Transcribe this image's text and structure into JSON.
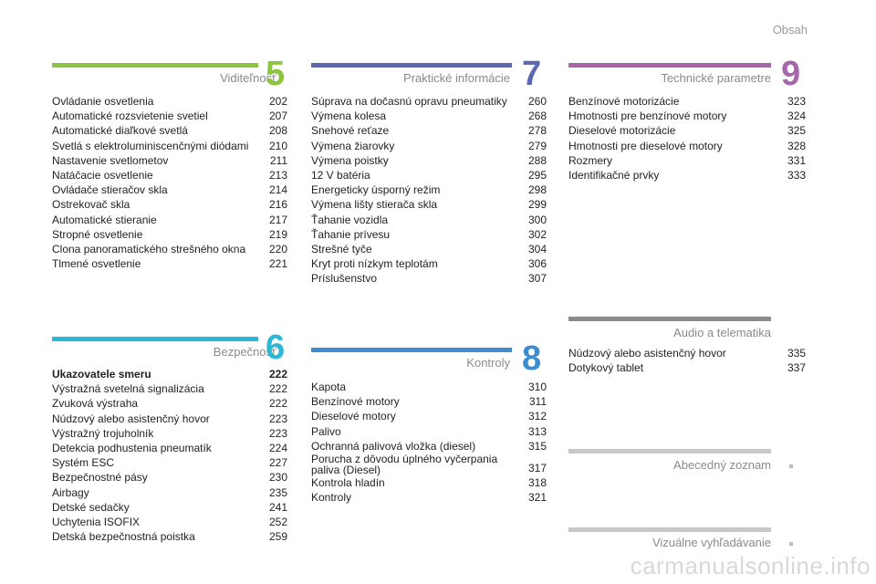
{
  "header": {
    "title": "Obsah"
  },
  "colors": {
    "green": "#8cc63f",
    "cyan": "#2bb7d6",
    "indigo": "#5b68b0",
    "blue": "#3e8cd0",
    "purple": "#a567aa",
    "gray": "#8b8b8b",
    "lightgray": "#c8c8c8"
  },
  "sections": {
    "s5": {
      "title": "Viditeľnosť",
      "number": "5",
      "items": [
        {
          "label": "Ovládanie osvetlenia",
          "page": "202"
        },
        {
          "label": "Automatické rozsvietenie svetiel",
          "page": "207"
        },
        {
          "label": "Automatické diaľkové svetlá",
          "page": "208"
        },
        {
          "label": "Svetlá s elektroluminiscenčnými diódami",
          "page": "210"
        },
        {
          "label": "Nastavenie svetlometov",
          "page": "211"
        },
        {
          "label": "Natáčacie osvetlenie",
          "page": "213"
        },
        {
          "label": "Ovládače stieračov skla",
          "page": "214"
        },
        {
          "label": "Ostrekovač skla",
          "page": "216"
        },
        {
          "label": "Automatické stieranie",
          "page": "217"
        },
        {
          "label": "Stropné osvetlenie",
          "page": "219"
        },
        {
          "label": "Clona panoramatického strešného okna",
          "page": "220"
        },
        {
          "label": "Tlmené osvetlenie",
          "page": "221"
        }
      ]
    },
    "s6": {
      "title": "Bezpečnosť",
      "number": "6",
      "items": [
        {
          "label": "Ukazovatele smeru",
          "page": "222"
        },
        {
          "label": "Výstražná svetelná signalizácia",
          "page": "222"
        },
        {
          "label": "Zvuková výstraha",
          "page": "222"
        },
        {
          "label": "Núdzový alebo asistenčný hovor",
          "page": "223"
        },
        {
          "label": "Výstražný trojuholník",
          "page": "223"
        },
        {
          "label": "Detekcia podhustenia pneumatík",
          "page": "224"
        },
        {
          "label": "Systém ESC",
          "page": "227"
        },
        {
          "label": "Bezpečnostné pásy",
          "page": "230"
        },
        {
          "label": "Airbagy",
          "page": "235"
        },
        {
          "label": "Detské sedačky",
          "page": "241"
        },
        {
          "label": "Uchytenia ISOFIX",
          "page": "252"
        },
        {
          "label": "Detská bezpečnostná poistka",
          "page": "259"
        }
      ]
    },
    "s7": {
      "title": "Praktické informácie",
      "number": "7",
      "items": [
        {
          "label": "Súprava na dočasnú opravu pneumatiky",
          "page": "260"
        },
        {
          "label": "Výmena kolesa",
          "page": "268"
        },
        {
          "label": "Snehové reťaze",
          "page": "278"
        },
        {
          "label": "Výmena žiarovky",
          "page": "279"
        },
        {
          "label": "Výmena poistky",
          "page": "288"
        },
        {
          "label": "12 V batéria",
          "page": "295"
        },
        {
          "label": "Energeticky úsporný režim",
          "page": "298"
        },
        {
          "label": "Výmena lišty stierača skla",
          "page": "299"
        },
        {
          "label": "Ťahanie vozidla",
          "page": "300"
        },
        {
          "label": "Ťahanie prívesu",
          "page": "302"
        },
        {
          "label": "Strešné tyče",
          "page": "304"
        },
        {
          "label": "Kryt proti nízkym teplotám",
          "page": "306"
        },
        {
          "label": "Príslušenstvo",
          "page": "307"
        }
      ]
    },
    "s8": {
      "title": "Kontroly",
      "number": "8",
      "items": [
        {
          "label": "Kapota",
          "page": "310"
        },
        {
          "label": "Benzínové motory",
          "page": "311"
        },
        {
          "label": "Dieselové motory",
          "page": "312"
        },
        {
          "label": "Palivo",
          "page": "313"
        },
        {
          "label": "Ochranná palivová vložka (diesel)",
          "page": "315"
        },
        {
          "label": "Porucha z dôvodu úplného vyčerpania paliva (Diesel)",
          "page": "317"
        },
        {
          "label": "Kontrola hladín",
          "page": "318"
        },
        {
          "label": "Kontroly",
          "page": "321"
        }
      ]
    },
    "s9": {
      "title": "Technické parametre",
      "number": "9",
      "items": [
        {
          "label": "Benzínové motorizácie",
          "page": "323"
        },
        {
          "label": "Hmotnosti pre benzínové motory",
          "page": "324"
        },
        {
          "label": "Dieselové motorizácie",
          "page": "325"
        },
        {
          "label": "Hmotnosti pre dieselové motory",
          "page": "328"
        },
        {
          "label": "Rozmery",
          "page": "331"
        },
        {
          "label": "Identifikačné prvky",
          "page": "333"
        }
      ]
    },
    "audio": {
      "title": "Audio a telematika",
      "items": [
        {
          "label": "Núdzový alebo asistenčný hovor",
          "page": "335"
        },
        {
          "label": "Dotykový tablet",
          "page": "337"
        }
      ]
    },
    "index": {
      "title": "Abecedný zoznam"
    },
    "visual": {
      "title": "Vizuálne vyhľadávanie"
    }
  },
  "watermark": "carmanualsonline.info"
}
